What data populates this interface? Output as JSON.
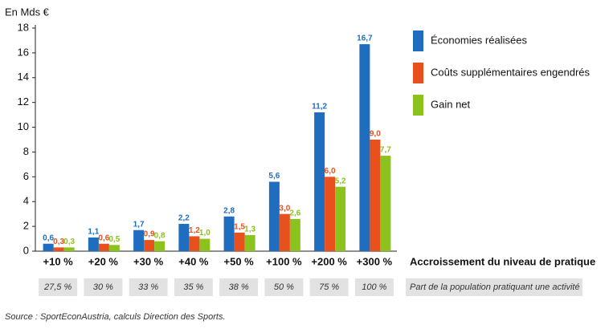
{
  "chart_data": {
    "type": "bar",
    "ylabel": "En Mds €",
    "xlabel": "Accroissement du niveau de pratique",
    "categories": [
      "+10 %",
      "+20 %",
      "+30 %",
      "+40 %",
      "+50 %",
      "+100 %",
      "+200 %",
      "+300 %"
    ],
    "series": [
      {
        "name": "Économies réalisées",
        "color": "#1f6dbf",
        "values": [
          0.6,
          1.1,
          1.7,
          2.2,
          2.8,
          5.6,
          11.2,
          16.7
        ],
        "value_labels": [
          "0,6",
          "1,1",
          "1,7",
          "2,2",
          "2,8",
          "5,6",
          "11,2",
          "16,7"
        ]
      },
      {
        "name": "Coûts supplémentaires engendrés",
        "color": "#e8501e",
        "values": [
          0.3,
          0.6,
          0.9,
          1.2,
          1.5,
          3.0,
          6.0,
          9.0
        ],
        "value_labels": [
          "0,3",
          "0,6",
          "0,9",
          "1,2",
          "1,5",
          "3,0",
          "6,0",
          "9,0"
        ]
      },
      {
        "name": "Gain net",
        "color": "#8cc21d",
        "values": [
          0.3,
          0.5,
          0.8,
          1.0,
          1.3,
          2.6,
          5.2,
          7.7
        ],
        "value_labels": [
          "0,3",
          "0,5",
          "0,8",
          "1,0",
          "1,3",
          "2,6",
          "5,2",
          "7,7"
        ]
      }
    ],
    "ylim": [
      0,
      18
    ],
    "yticks": [
      0,
      2,
      4,
      6,
      8,
      10,
      12,
      14,
      16,
      18
    ],
    "population_shares": [
      "27,5 %",
      "30 %",
      "33 %",
      "35 %",
      "38 %",
      "50 %",
      "75 %",
      "100 %"
    ],
    "population_label": "Part de la population pratiquant une activité",
    "source": "Source : SportEconAustria, calculs Direction des Sports."
  }
}
